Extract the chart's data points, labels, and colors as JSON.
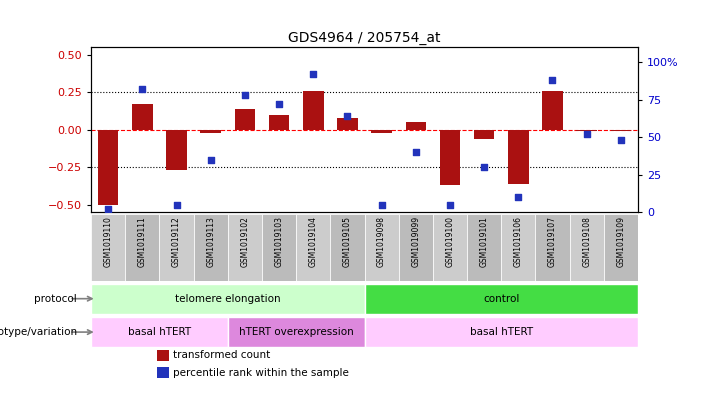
{
  "title": "GDS4964 / 205754_at",
  "samples": [
    "GSM1019110",
    "GSM1019111",
    "GSM1019112",
    "GSM1019113",
    "GSM1019102",
    "GSM1019103",
    "GSM1019104",
    "GSM1019105",
    "GSM1019098",
    "GSM1019099",
    "GSM1019100",
    "GSM1019101",
    "GSM1019106",
    "GSM1019107",
    "GSM1019108",
    "GSM1019109"
  ],
  "transformed_count": [
    -0.5,
    0.17,
    -0.27,
    -0.02,
    0.14,
    0.1,
    0.26,
    0.08,
    -0.02,
    0.05,
    -0.37,
    -0.06,
    -0.36,
    0.26,
    -0.01,
    -0.01
  ],
  "percentile_rank": [
    2,
    82,
    5,
    35,
    78,
    72,
    92,
    64,
    5,
    40,
    5,
    30,
    10,
    88,
    52,
    48
  ],
  "bar_color": "#aa1111",
  "dot_color": "#2233bb",
  "ylim_left": [
    -0.55,
    0.55
  ],
  "ylim_right": [
    0,
    110
  ],
  "yticks_left": [
    -0.5,
    -0.25,
    0,
    0.25,
    0.5
  ],
  "yticks_right": [
    0,
    25,
    50,
    75,
    100
  ],
  "dotted_lines": [
    -0.25,
    0.25
  ],
  "protocol_groups": [
    {
      "label": "telomere elongation",
      "start": 0,
      "end": 8,
      "color": "#ccffcc"
    },
    {
      "label": "control",
      "start": 8,
      "end": 16,
      "color": "#44dd44"
    }
  ],
  "genotype_groups": [
    {
      "label": "basal hTERT",
      "start": 0,
      "end": 4,
      "color": "#ffccff"
    },
    {
      "label": "hTERT overexpression",
      "start": 4,
      "end": 8,
      "color": "#dd88dd"
    },
    {
      "label": "basal hTERT",
      "start": 8,
      "end": 16,
      "color": "#ffccff"
    }
  ],
  "legend_items": [
    {
      "color": "#aa1111",
      "label": "transformed count",
      "marker": "s"
    },
    {
      "color": "#2233bb",
      "label": "percentile rank within the sample",
      "marker": "s"
    }
  ],
  "left_ycolor": "#cc0000",
  "right_ycolor": "#0000cc",
  "row_label_protocol": "protocol",
  "row_label_genotype": "genotype/variation",
  "sample_box_colors": [
    "#cccccc",
    "#bbbbbb"
  ],
  "chart_bg": "#ffffff",
  "fig_bg": "#ffffff"
}
